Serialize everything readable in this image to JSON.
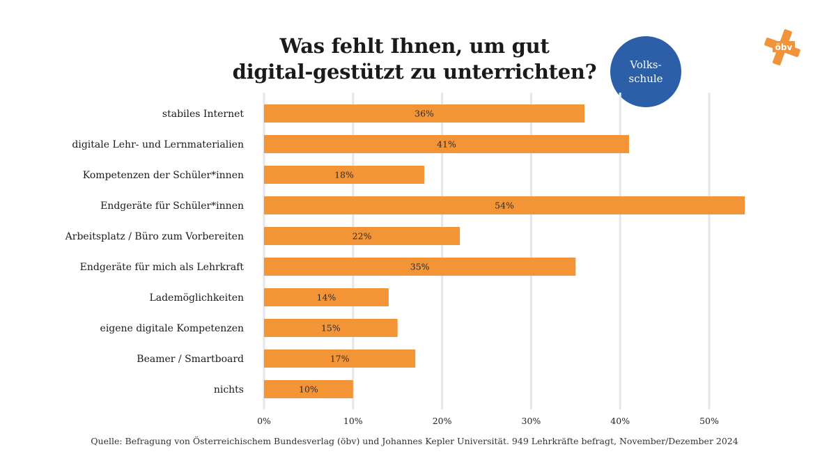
{
  "badge": {
    "line1": "Volks-",
    "line2": "schule",
    "color": "#2c5fa8"
  },
  "logo": {
    "text": "öbv",
    "color": "#f0933a"
  },
  "source": "Quelle: Befragung von Österreichischem Bundesverlag (öbv) und Johannes Kepler Universität. 949 Lehrkräfte befragt, November/Dezember 2024",
  "chart_data": {
    "type": "bar",
    "orientation": "horizontal",
    "title": [
      "Was fehlt Ihnen, um gut",
      "digital-gestützt zu unterrichten?"
    ],
    "categories": [
      "stabiles Internet",
      "digitale Lehr- und Lernmaterialien",
      "Kompetenzen der Schüler*innen",
      "Endgeräte für Schüler*innen",
      "Arbeitsplatz / Büro zum Vorbereiten",
      "Endgeräte für mich als Lehrkraft",
      "Lademöglichkeiten",
      "eigene digitale Kompetenzen",
      "Beamer / Smartboard",
      "nichts"
    ],
    "values": [
      36,
      41,
      18,
      54,
      22,
      35,
      14,
      15,
      17,
      10
    ],
    "value_labels": [
      "36%",
      "41%",
      "18%",
      "54%",
      "22%",
      "35%",
      "14%",
      "15%",
      "17%",
      "10%"
    ],
    "xlim": [
      0,
      55
    ],
    "xticks": [
      0,
      10,
      20,
      30,
      40,
      50
    ],
    "xtick_labels": [
      "0%",
      "10%",
      "20%",
      "30%",
      "40%",
      "50%"
    ],
    "xlabel": "",
    "ylabel": "",
    "grid": true,
    "bar_color": "#f39536",
    "grid_color": "#e6e6e6"
  }
}
